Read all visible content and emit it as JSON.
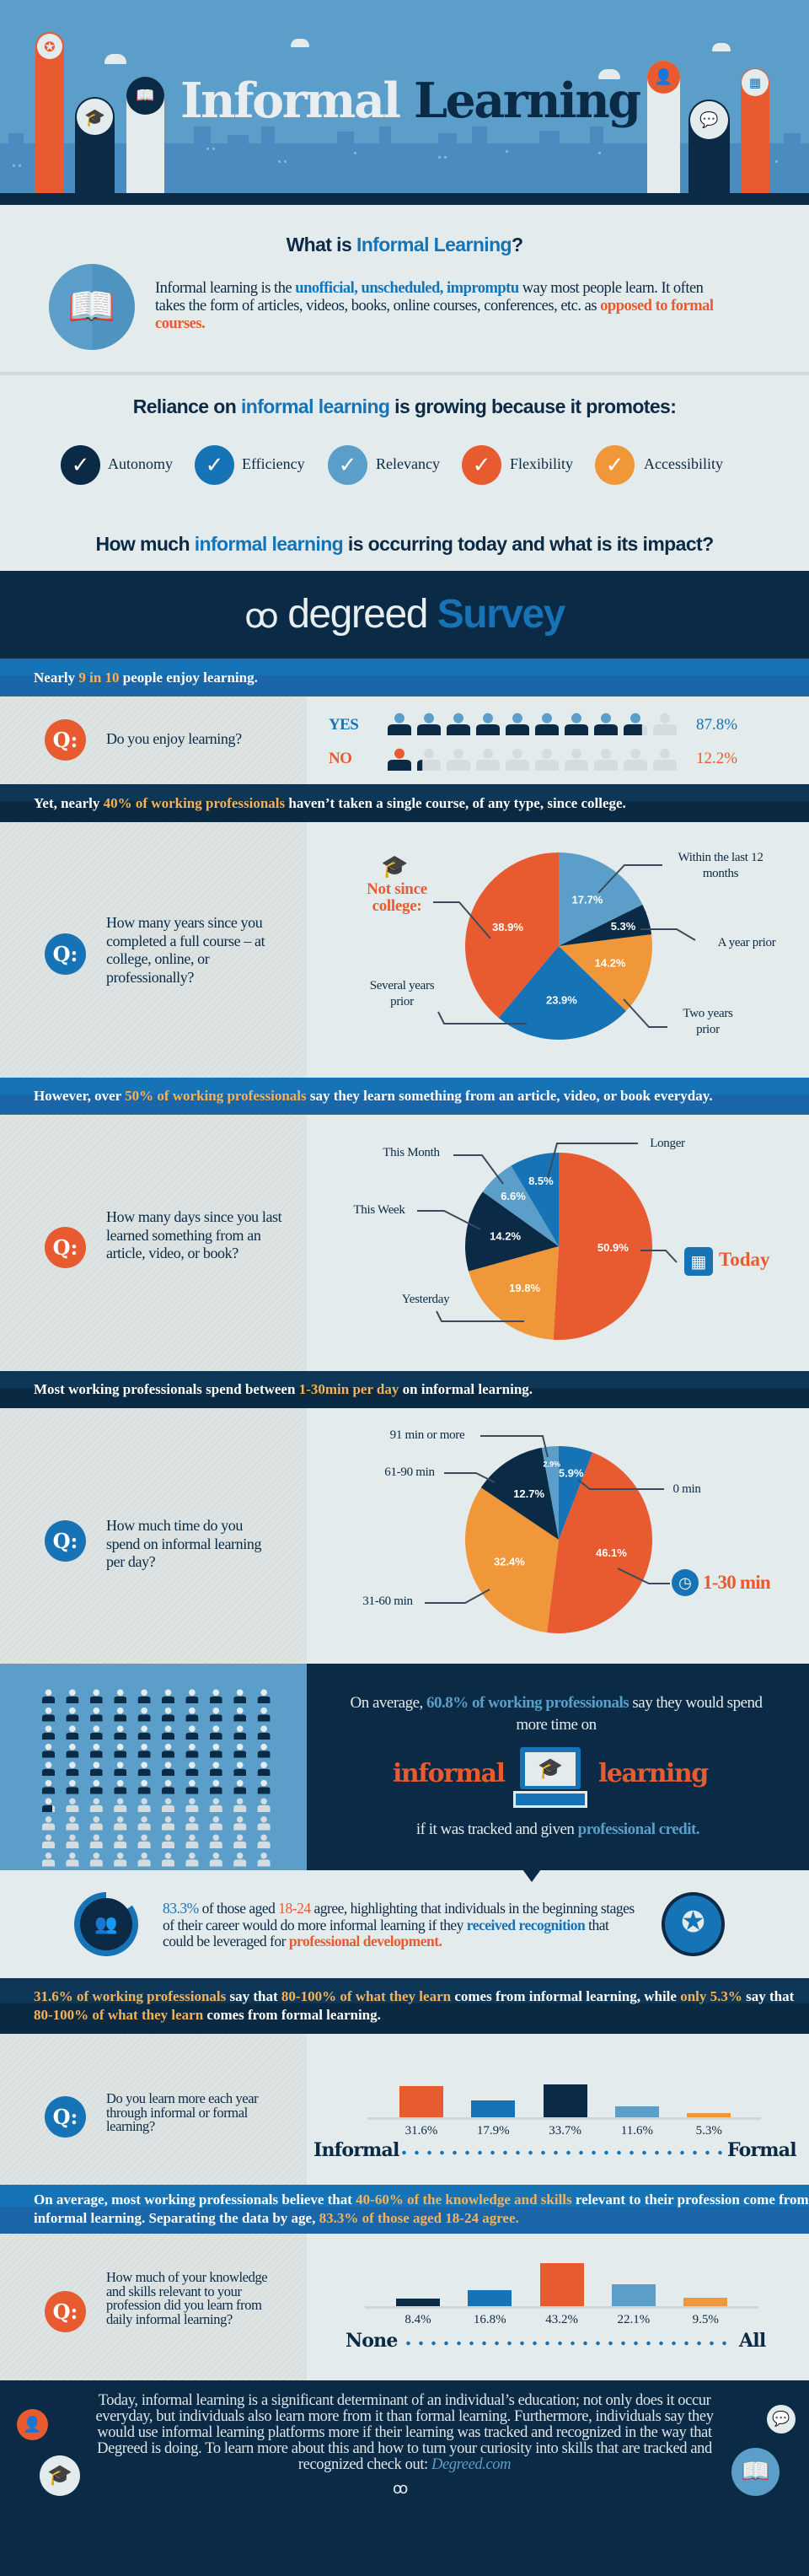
{
  "header": {
    "title_part1": "Informal",
    "title_part2": "Learning"
  },
  "what_is": {
    "title_prefix": "What is ",
    "title_highlight": "Informal Learning",
    "title_suffix": "?",
    "body_1": "Informal learning is the ",
    "body_hl1": "unofficial, unscheduled, impromptu",
    "body_2": " way most people learn. It often takes the form of articles, videos, books, online courses, conferences, etc. as ",
    "body_hl2": "opposed to formal courses."
  },
  "reliance": {
    "title_prefix": "Reliance on ",
    "title_highlight": "informal learning",
    "title_suffix": " is growing because it promotes:",
    "items": [
      {
        "label": "Autonomy",
        "color": "#0b2a45"
      },
      {
        "label": "Efficiency",
        "color": "#1673b5"
      },
      {
        "label": "Relevancy",
        "color": "#5a9ec9"
      },
      {
        "label": "Flexibility",
        "color": "#e85a30"
      },
      {
        "label": "Accessibility",
        "color": "#f0973a"
      }
    ],
    "check_glyph": "✓"
  },
  "impact": {
    "prefix": "How much ",
    "highlight": "informal learning",
    "suffix": " is occurring today and what is its impact?"
  },
  "survey": {
    "brand": "degreed",
    "title": "Survey"
  },
  "bands": [
    {
      "segments": [
        "Nearly ",
        "9 in 10",
        " people enjoy learning."
      ]
    },
    {
      "segments": [
        "Yet, nearly ",
        "40% of working professionals",
        " haven’t taken a single course, of any type, since college."
      ]
    },
    {
      "segments": [
        "However, over ",
        "50% of working professionals",
        " say they learn something from an article, video, or book everyday."
      ]
    },
    {
      "segments": [
        "Most working professionals spend between ",
        "1-30min per day",
        " on informal learning."
      ]
    },
    {
      "segments": [
        "31.6% of working professionals",
        " say that ",
        "80-100% of what they learn",
        " comes from informal learning, while ",
        "only 5.3%",
        " say that ",
        "80-100% of what they learn",
        " comes from formal learning."
      ]
    },
    {
      "segments": [
        "On average, most working professionals believe that ",
        "40-60% of the knowledge and skills",
        " relevant to their profession come from informal learning. Separating the data by age, ",
        "83.3% of those aged 18-24 agree."
      ]
    }
  ],
  "q_label": "Q:",
  "enjoy": {
    "question": "Do you enjoy learning?",
    "yes_label": "YES",
    "yes_value": 87.8,
    "yes_text": "87.8%",
    "no_label": "NO",
    "no_value": 12.2,
    "no_text": "12.2%"
  },
  "pie_questions": {
    "years": "How many years since you completed a full course – at college, online, or professionally?",
    "days": "How many days since you last learned something from an article, video, or book?",
    "time": "How much time do you spend on informal learning per day?"
  },
  "chart_data": [
    {
      "type": "pie",
      "labels": [
        "Within the last 12 months",
        "A year prior",
        "Two years prior",
        "Several years prior",
        "Not since college:"
      ],
      "values": [
        17.7,
        5.3,
        14.2,
        23.9,
        38.9
      ],
      "colors": [
        "#5a9ec9",
        "#0b2a45",
        "#f0973a",
        "#1673b5",
        "#e85a30"
      ]
    },
    {
      "type": "pie",
      "labels": [
        "Today",
        "Yesterday",
        "This Week",
        "This Month",
        "Longer"
      ],
      "values": [
        50.9,
        19.8,
        14.2,
        6.6,
        8.5
      ],
      "colors": [
        "#e85a30",
        "#f0973a",
        "#0b2a45",
        "#5a9ec9",
        "#1673b5"
      ]
    },
    {
      "type": "pie",
      "labels": [
        "0 min",
        "1-30 min",
        "31-60 min",
        "61-90 min",
        "91 min or more"
      ],
      "values": [
        5.9,
        46.1,
        32.4,
        12.7,
        2.9
      ],
      "colors": [
        "#1673b5",
        "#e85a30",
        "#f0973a",
        "#0b2a45",
        "#5a9ec9"
      ]
    },
    {
      "type": "bar",
      "question": "Do you learn more each year through informal or formal learning?",
      "values": [
        31.6,
        17.9,
        33.7,
        11.6,
        5.3
      ],
      "colors": [
        "#e85a30",
        "#1673b5",
        "#0b2a45",
        "#5a9ec9",
        "#f0973a"
      ],
      "axis_start": "Informal",
      "axis_end": "Formal"
    },
    {
      "type": "bar",
      "question": "How much of your knowledge and skills relevant to your profession did you learn from daily informal learning?",
      "values": [
        8.4,
        16.8,
        43.2,
        22.1,
        9.5
      ],
      "colors": [
        "#0b2a45",
        "#1673b5",
        "#e85a30",
        "#5a9ec9",
        "#f0973a"
      ],
      "axis_start": "None",
      "axis_end": "All"
    }
  ],
  "tracked": {
    "value": 60.8,
    "line_1": "On average, ",
    "hl": "60.8% of working professionals",
    "line_2": " say they would spend more time on",
    "word_left": "informal",
    "word_right": "learning",
    "line_3": "if it was tracked and given ",
    "hl_2": "professional credit."
  },
  "callout": {
    "p1": "83.3%",
    "p2": " of those aged ",
    "p3": "18-24",
    "p4": " agree, highlighting that individuals in the beginning stages of their career would do more informal learning if they ",
    "p5": "received recognition",
    "p6": " that could be leveraged for ",
    "p7": "professional development."
  },
  "footer": {
    "text": "Today, informal learning is a significant determinant of an individual’s education; not only does it occur everyday, but individuals also learn more from it than formal learning. Furthermore, individuals say they would use informal learning platforms more if their learning was tracked and recognized in the way that Degreed is doing. To learn more about this and how to turn your curiosity into skills that are tracked and recognized check out: ",
    "link": "Degreed.com"
  }
}
